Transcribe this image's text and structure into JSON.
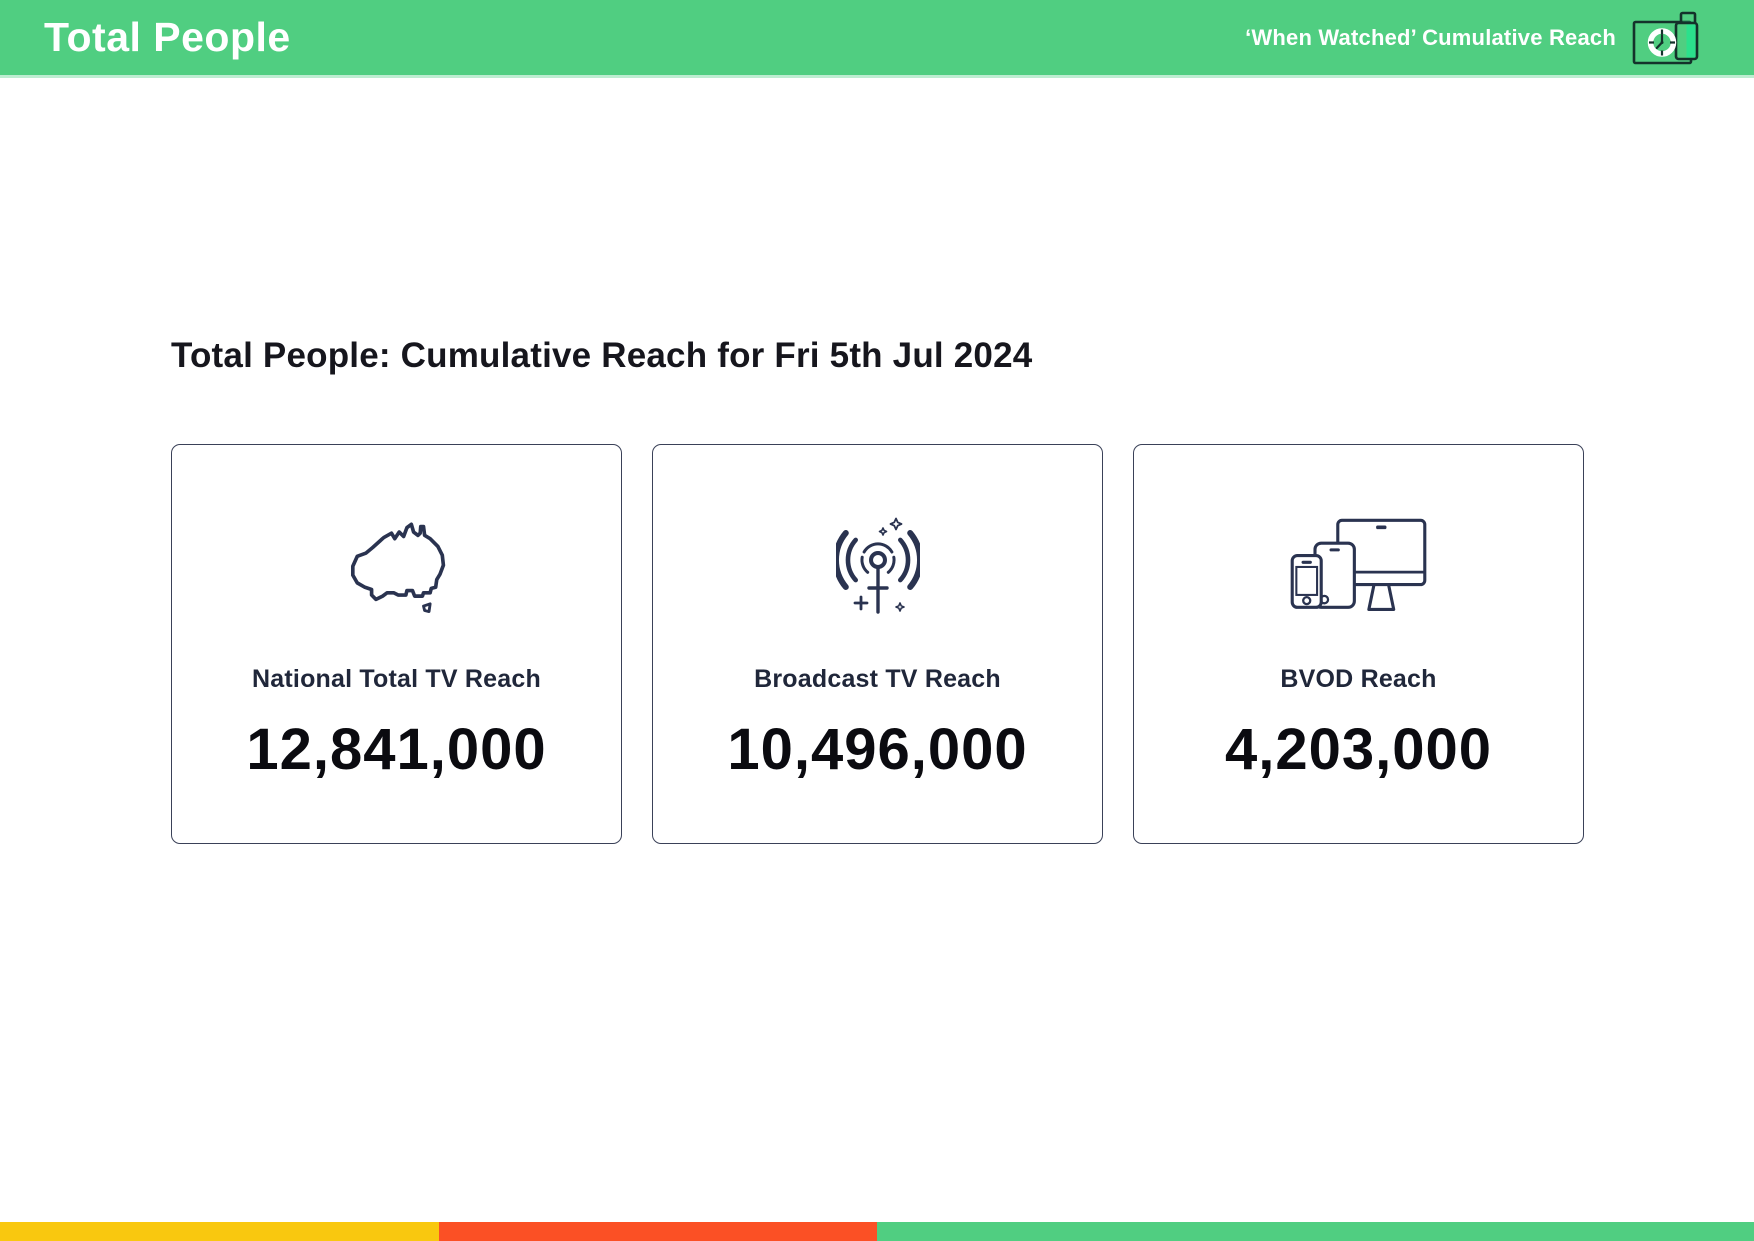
{
  "header": {
    "title": "Total People",
    "subtitle": "‘When Watched’ Cumulative Reach",
    "bg_color": "#50CE81",
    "icon": "schedule-clock-icon"
  },
  "main": {
    "heading": "Total People: Cumulative Reach for Fri 5th Jul 2024",
    "heading_color": "#16161D",
    "card_border_color": "#3A4158",
    "icon_color": "#2A3350",
    "cards": [
      {
        "icon": "australia-map-icon",
        "label": "National Total TV Reach",
        "value": "12,841,000"
      },
      {
        "icon": "broadcast-tower-icon",
        "label": "Broadcast TV Reach",
        "value": "10,496,000"
      },
      {
        "icon": "multi-device-icon",
        "label": "BVOD Reach",
        "value": "4,203,000"
      }
    ]
  },
  "footer": {
    "segments": [
      {
        "name": "yellow",
        "color": "#F9C80F",
        "width_pct": 25
      },
      {
        "name": "red",
        "color": "#FB5025",
        "width_pct": 25
      },
      {
        "name": "green",
        "color": "#50CE81",
        "width_pct": 50
      }
    ]
  }
}
